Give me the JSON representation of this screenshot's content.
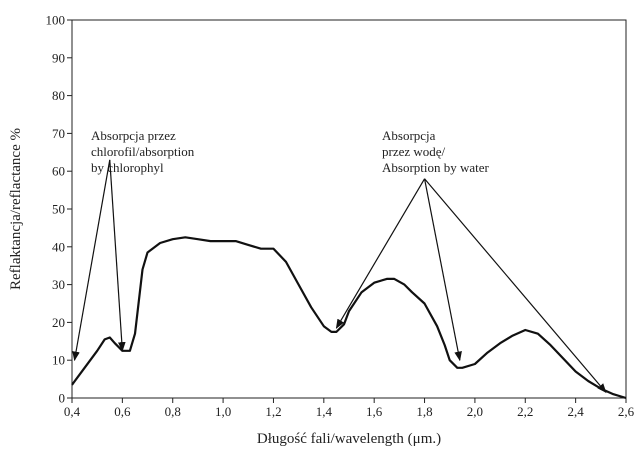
{
  "chart_data": {
    "type": "line",
    "title": "",
    "xlabel": "Długość fali/wavelength (μm.)",
    "ylabel": "Reflaktancja/reflactance %",
    "xlim": [
      0.4,
      2.6
    ],
    "ylim": [
      0,
      100
    ],
    "x_ticks": [
      "0,4",
      "0,6",
      "0,8",
      "1,0",
      "1,2",
      "1,4",
      "1,6",
      "1,8",
      "2,0",
      "2,2",
      "2,4",
      "2,6"
    ],
    "x_tick_values": [
      0.4,
      0.6,
      0.8,
      1.0,
      1.2,
      1.4,
      1.6,
      1.8,
      2.0,
      2.2,
      2.4,
      2.6
    ],
    "y_ticks": [
      "0",
      "10",
      "20",
      "30",
      "40",
      "50",
      "60",
      "70",
      "80",
      "90",
      "100"
    ],
    "y_tick_values": [
      0,
      10,
      20,
      30,
      40,
      50,
      60,
      70,
      80,
      90,
      100
    ],
    "grid": false,
    "line_color": "#111111",
    "series": [
      {
        "x": [
          0.4,
          0.45,
          0.5,
          0.53,
          0.55,
          0.57,
          0.6,
          0.63,
          0.65,
          0.68,
          0.7,
          0.75,
          0.8,
          0.85,
          0.9,
          0.95,
          1.0,
          1.05,
          1.1,
          1.15,
          1.2,
          1.25,
          1.3,
          1.35,
          1.4,
          1.43,
          1.45,
          1.48,
          1.5,
          1.55,
          1.6,
          1.65,
          1.68,
          1.72,
          1.75,
          1.8,
          1.85,
          1.88,
          1.9,
          1.93,
          1.95,
          2.0,
          2.05,
          2.1,
          2.15,
          2.2,
          2.25,
          2.3,
          2.35,
          2.4,
          2.45,
          2.5,
          2.55,
          2.6
        ],
        "y": [
          3.5,
          8,
          12.5,
          15.5,
          16,
          14.5,
          12.5,
          12.5,
          17,
          34,
          38.5,
          41,
          42,
          42.5,
          42,
          41.5,
          41.5,
          41.5,
          40.5,
          39.5,
          39.5,
          36,
          30,
          24,
          19,
          17.5,
          17.5,
          19.5,
          23,
          28,
          30.5,
          31.5,
          31.5,
          30,
          28,
          25,
          19,
          14,
          10,
          8,
          8,
          9,
          12,
          14.5,
          16.5,
          18,
          17,
          14,
          10.5,
          7,
          4.5,
          2.5,
          1,
          0
        ]
      }
    ],
    "annotations": [
      {
        "lines": [
          "Absorpcja przez",
          "chlorofil/absorption",
          "by chlorophyl"
        ],
        "origin": [
          0.55,
          63
        ],
        "arrow_targets": [
          [
            0.41,
            10
          ],
          [
            0.6,
            12.5
          ]
        ]
      },
      {
        "lines": [
          "Absorpcja",
          "przez wodę/",
          "Absorption by water"
        ],
        "origin": [
          1.8,
          58
        ],
        "arrow_targets": [
          [
            1.45,
            18.5
          ],
          [
            1.94,
            10
          ],
          [
            2.52,
            1.5
          ]
        ]
      }
    ]
  }
}
